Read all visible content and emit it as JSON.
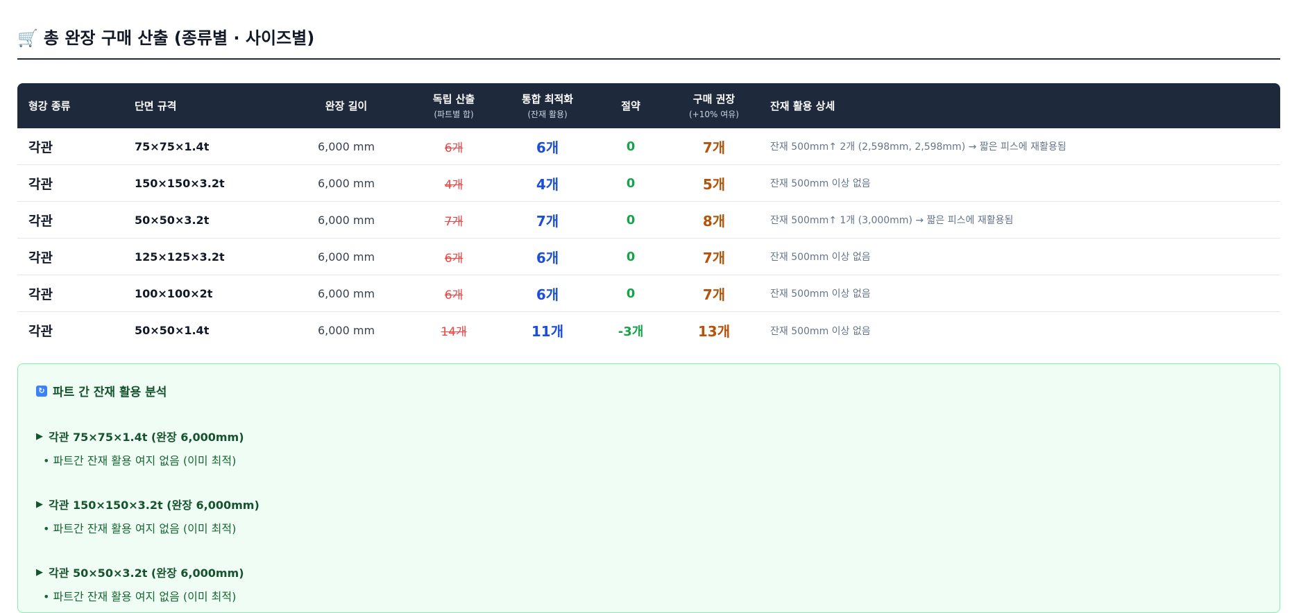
{
  "header": {
    "icon": "shopping-cart-icon",
    "title": "총 완장 구매 산출 (종류별 · 사이즈별)"
  },
  "table": {
    "columns": {
      "type": "형강 종류",
      "spec": "단면 규격",
      "length": "완장 길이",
      "independent": "독립 산출",
      "independent_sub": "(파트별 합)",
      "optimized": "통합 최적화",
      "optimized_sub": "(잔재 활용)",
      "saving": "절약",
      "recommend": "구매 권장",
      "recommend_sub": "(+10% 여유)",
      "detail": "잔재 활용 상세"
    },
    "rows": [
      {
        "type": "각관",
        "spec": "75×75×1.4t",
        "length": "6,000 mm",
        "independent": "6개",
        "optimized": "6개",
        "saving": "0",
        "recommend": "7개",
        "detail": "잔재 500mm↑ 2개 (2,598mm, 2,598mm) → 짧은 피스에 재활용됨"
      },
      {
        "type": "각관",
        "spec": "150×150×3.2t",
        "length": "6,000 mm",
        "independent": "4개",
        "optimized": "4개",
        "saving": "0",
        "recommend": "5개",
        "detail": "잔재 500mm 이상 없음"
      },
      {
        "type": "각관",
        "spec": "50×50×3.2t",
        "length": "6,000 mm",
        "independent": "7개",
        "optimized": "7개",
        "saving": "0",
        "recommend": "8개",
        "detail": "잔재 500mm↑ 1개 (3,000mm) → 짧은 피스에 재활용됨"
      },
      {
        "type": "각관",
        "spec": "125×125×3.2t",
        "length": "6,000 mm",
        "independent": "6개",
        "optimized": "6개",
        "saving": "0",
        "recommend": "7개",
        "detail": "잔재 500mm 이상 없음"
      },
      {
        "type": "각관",
        "spec": "100×100×2t",
        "length": "6,000 mm",
        "independent": "6개",
        "optimized": "6개",
        "saving": "0",
        "recommend": "7개",
        "detail": "잔재 500mm 이상 없음"
      },
      {
        "type": "각관",
        "spec": "50×50×1.4t",
        "length": "6,000 mm",
        "independent": "14개",
        "optimized": "11개",
        "saving": "-3개",
        "recommend": "13개",
        "detail": "잔재 500mm 이상 없음"
      }
    ]
  },
  "analysis": {
    "icon": "refresh-icon",
    "title": "파트 간 잔재 활용 분석",
    "items": [
      {
        "heading": "각관 75×75×1.4t (완장 6,000mm)",
        "note": "• 파트간 잔재 활용 여지 없음 (이미 최적)"
      },
      {
        "heading": "각관 150×150×3.2t (완장 6,000mm)",
        "note": "• 파트간 잔재 활용 여지 없음 (이미 최적)"
      },
      {
        "heading": "각관 50×50×3.2t (완장 6,000mm)",
        "note": "• 파트간 잔재 활용 여지 없음 (이미 최적)"
      }
    ]
  },
  "colors": {
    "header_bg": "#1e293b",
    "strike_red": "#ef4444",
    "optimized_blue": "#1d4ed8",
    "saving_green": "#16a34a",
    "recommend_orange": "#b45309",
    "panel_bg": "#f0fdf4",
    "panel_border": "#86efac"
  }
}
